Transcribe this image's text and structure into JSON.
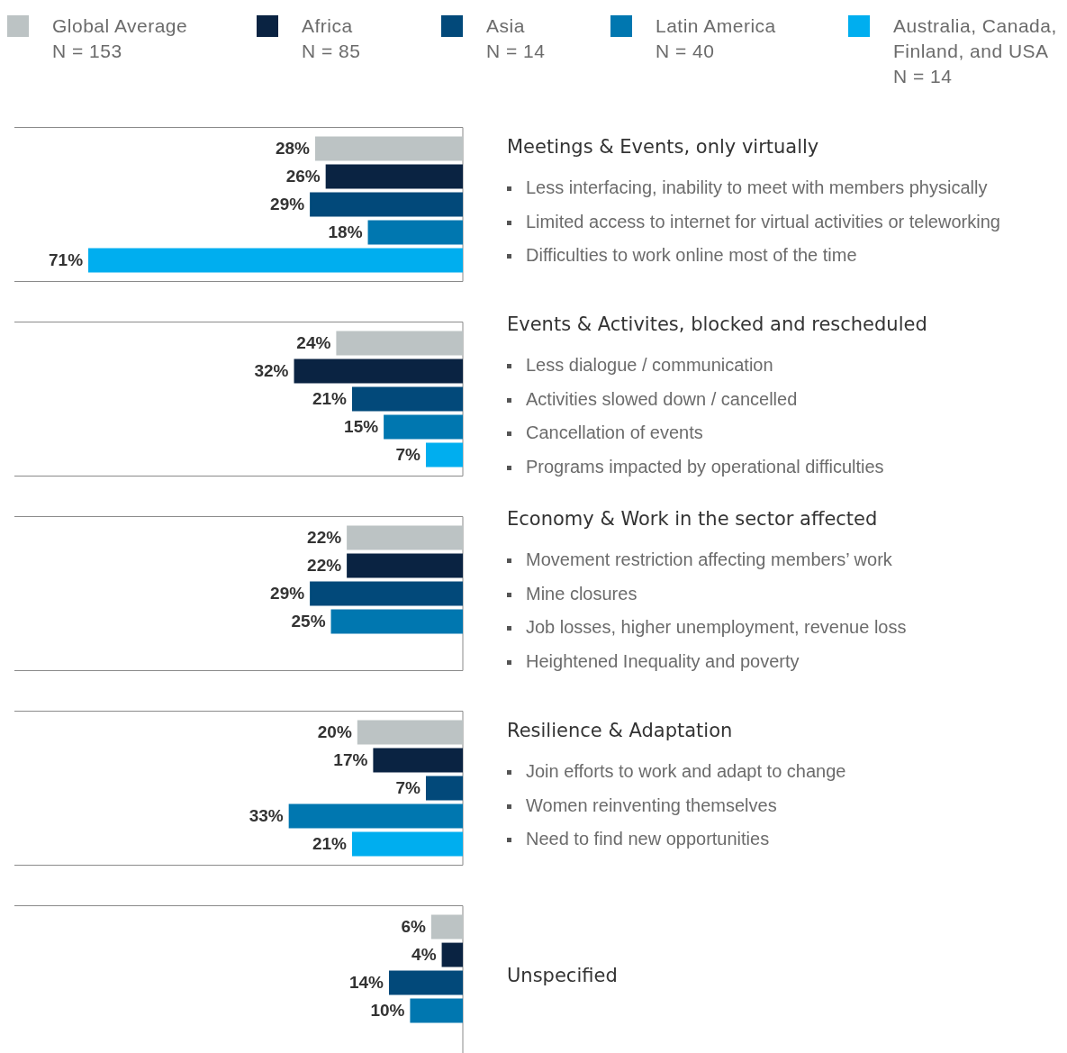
{
  "chart_data": [
    {
      "type": "bar",
      "orientation": "horizontal",
      "annotations": [
        "Meetings & Events, only virtually",
        "Less interfacing, inability to meet with members physically",
        "Limited access to internet for virtual activities or teleworking",
        "Difficulties to work online most of the time"
      ],
      "categories": [
        null
      ],
      "xlim": [
        85,
        0
      ],
      "tick_labels": false,
      "legend": "top",
      "series": [
        {
          "name": "Global Average\nN = 153",
          "color": "#bcc3c4",
          "values": [
            28
          ],
          "value_labels": [
            "28%"
          ]
        },
        {
          "name": "Africa\nN = 85",
          "color": "#0a2342",
          "values": [
            26
          ],
          "value_labels": [
            "26%"
          ]
        },
        {
          "name": "Asia\nN = 14",
          "color": "#02497a",
          "values": [
            29
          ],
          "value_labels": [
            "29%"
          ]
        },
        {
          "name": "Latin America\nN = 40",
          "color": "#0077b0",
          "values": [
            18
          ],
          "value_labels": [
            "18%"
          ]
        },
        {
          "name": "Australia, Canada, Finland, and USA\nN = 14",
          "color": "#00aeef",
          "values": [
            71
          ],
          "value_labels": [
            "71%"
          ]
        }
      ]
    },
    {
      "type": "bar",
      "orientation": "horizontal",
      "annotations": [
        "Events & Activites, blocked and rescheduled",
        "Less dialogue / communication",
        "Activities slowed down / cancelled",
        "Cancellation of events",
        "Programs impacted by operational difficulties"
      ],
      "categories": [
        null
      ],
      "xlim": [
        85,
        0
      ],
      "tick_labels": false,
      "series": [
        {
          "color": "#bcc3c4",
          "values": [
            24
          ],
          "value_labels": [
            "24%"
          ]
        },
        {
          "color": "#0a2342",
          "values": [
            32
          ],
          "value_labels": [
            "32%"
          ]
        },
        {
          "color": "#02497a",
          "values": [
            21
          ],
          "value_labels": [
            "21%"
          ]
        },
        {
          "color": "#0077b0",
          "values": [
            15
          ],
          "value_labels": [
            "15%"
          ]
        },
        {
          "color": "#00aeef",
          "values": [
            7
          ],
          "value_labels": [
            "7%"
          ]
        }
      ]
    },
    {
      "type": "bar",
      "orientation": "horizontal",
      "annotations": [
        "Economy & Work in the sector affected",
        "Movement restriction affecting members’ work",
        "Mine closures",
        "Job losses, higher unemployment, revenue loss",
        "Heightened Inequality and poverty"
      ],
      "categories": [
        null
      ],
      "xlim": [
        85,
        0
      ],
      "tick_labels": false,
      "series": [
        {
          "color": "#bcc3c4",
          "values": [
            22
          ],
          "value_labels": [
            "22%"
          ]
        },
        {
          "color": "#0a2342",
          "values": [
            22
          ],
          "value_labels": [
            "22%"
          ]
        },
        {
          "color": "#02497a",
          "values": [
            29
          ],
          "value_labels": [
            "29%"
          ]
        },
        {
          "color": "#0077b0",
          "values": [
            25
          ],
          "value_labels": [
            "25%"
          ]
        },
        {
          "color": "#00aeef",
          "values": [
            null
          ],
          "value_labels": [
            null
          ]
        }
      ]
    },
    {
      "type": "bar",
      "orientation": "horizontal",
      "annotations": [
        "Resilience & Adaptation",
        "Join efforts to work and adapt to change",
        "Women reinventing themselves",
        "Need to find new opportunities"
      ],
      "categories": [
        null
      ],
      "xlim": [
        85,
        0
      ],
      "tick_labels": false,
      "series": [
        {
          "color": "#bcc3c4",
          "values": [
            20
          ],
          "value_labels": [
            "20%"
          ]
        },
        {
          "color": "#0a2342",
          "values": [
            17
          ],
          "value_labels": [
            "17%"
          ]
        },
        {
          "color": "#02497a",
          "values": [
            7
          ],
          "value_labels": [
            "7%"
          ]
        },
        {
          "color": "#0077b0",
          "values": [
            33
          ],
          "value_labels": [
            "33%"
          ]
        },
        {
          "color": "#00aeef",
          "values": [
            21
          ],
          "value_labels": [
            "21%"
          ]
        }
      ]
    },
    {
      "type": "bar",
      "orientation": "horizontal",
      "annotations": [
        "Unspecified"
      ],
      "categories": [
        null
      ],
      "xlim": [
        85,
        0
      ],
      "tick_labels": false,
      "series": [
        {
          "color": "#bcc3c4",
          "values": [
            6
          ],
          "value_labels": [
            "6%"
          ]
        },
        {
          "color": "#0a2342",
          "values": [
            4
          ],
          "value_labels": [
            "4%"
          ]
        },
        {
          "color": "#02497a",
          "values": [
            14
          ],
          "value_labels": [
            "14%"
          ]
        },
        {
          "color": "#0077b0",
          "values": [
            10
          ],
          "value_labels": [
            "10%"
          ]
        },
        {
          "color": "#00aeef",
          "values": [
            null
          ],
          "value_labels": [
            null
          ]
        }
      ]
    }
  ]
}
